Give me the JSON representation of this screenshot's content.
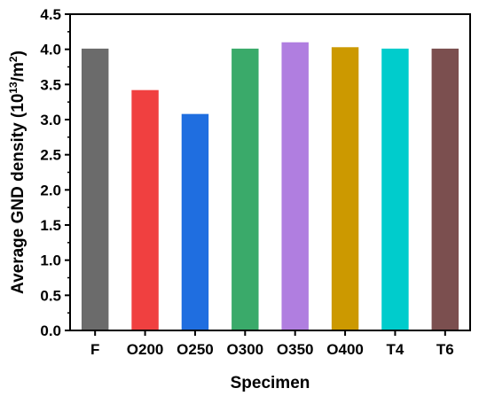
{
  "chart_data": {
    "type": "bar",
    "title": "",
    "xlabel": "Specimen",
    "ylabel": {
      "prefix": "Average GND density (10",
      "exp1": "13",
      "mid": "/m",
      "exp2": "2",
      "suffix": ")"
    },
    "categories": [
      "F",
      "O200",
      "O250",
      "O300",
      "O350",
      "O400",
      "T4",
      "T6"
    ],
    "values": [
      4.01,
      3.42,
      3.08,
      4.01,
      4.1,
      4.03,
      4.01,
      4.01
    ],
    "colors": [
      "#6b6b6b",
      "#f04040",
      "#1f6ee0",
      "#3aaa6a",
      "#b07ee0",
      "#cc9900",
      "#00cccc",
      "#7b4f4f"
    ],
    "ylim": [
      0,
      4.5
    ],
    "yticks": [
      "0.0",
      "0.5",
      "1.0",
      "1.5",
      "2.0",
      "2.5",
      "3.0",
      "3.5",
      "4.0",
      "4.5"
    ],
    "grid": false,
    "legend": "none"
  }
}
